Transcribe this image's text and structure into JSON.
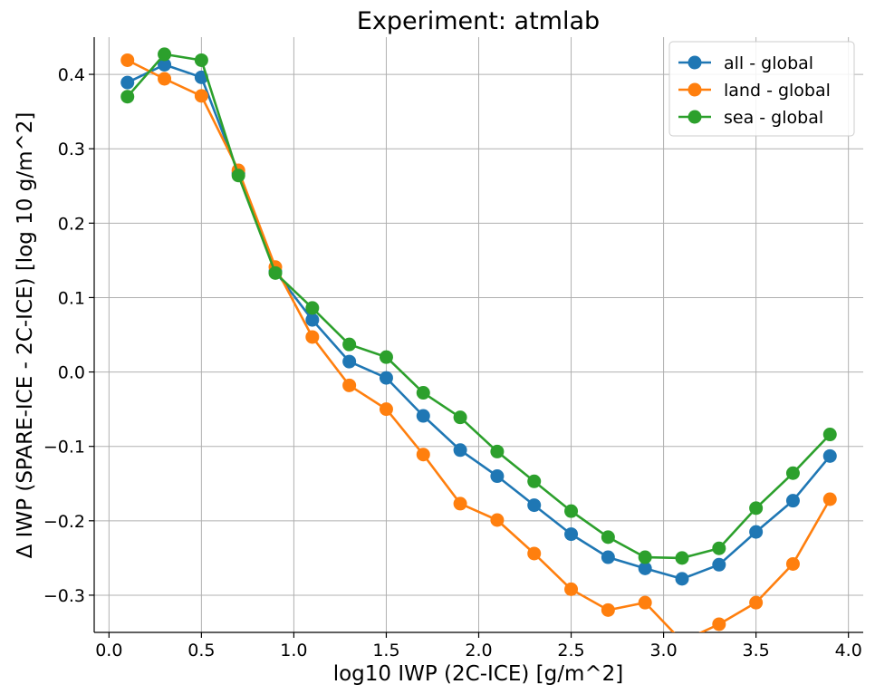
{
  "chart_data": {
    "type": "line",
    "title": "Experiment: atmlab",
    "xlabel": "log10 IWP (2C-ICE) [g/m^2]",
    "ylabel": "Δ IWP (SPARE-ICE - 2C-ICE) [log 10 g/m^2]",
    "xlim": [
      -0.08,
      4.08
    ],
    "ylim": [
      -0.35,
      0.45
    ],
    "xticks": [
      0.0,
      0.5,
      1.0,
      1.5,
      2.0,
      2.5,
      3.0,
      3.5,
      4.0
    ],
    "xtick_labels": [
      "0.0",
      "0.5",
      "1.0",
      "1.5",
      "2.0",
      "2.5",
      "3.0",
      "3.5",
      "4.0"
    ],
    "yticks": [
      -0.3,
      -0.2,
      -0.1,
      0.0,
      0.1,
      0.2,
      0.3,
      0.4
    ],
    "ytick_labels": [
      "−0.3",
      "−0.2",
      "−0.1",
      "0.0",
      "0.1",
      "0.2",
      "0.3",
      "0.4"
    ],
    "grid": true,
    "legend_position": "top-right",
    "x": [
      0.1,
      0.3,
      0.5,
      0.7,
      0.9,
      1.1,
      1.3,
      1.5,
      1.7,
      1.9,
      2.1,
      2.3,
      2.5,
      2.7,
      2.9,
      3.1,
      3.3,
      3.5,
      3.7,
      3.9
    ],
    "series": [
      {
        "name": "all - global",
        "color": "#1f77b4",
        "values": [
          0.389,
          0.413,
          0.396,
          0.267,
          0.135,
          0.07,
          0.014,
          -0.008,
          -0.059,
          -0.105,
          -0.14,
          -0.179,
          -0.218,
          -0.249,
          -0.264,
          -0.278,
          -0.259,
          -0.215,
          -0.173,
          -0.113
        ]
      },
      {
        "name": "land - global",
        "color": "#ff7f0e",
        "values": [
          0.419,
          0.394,
          0.371,
          0.271,
          0.141,
          0.047,
          -0.018,
          -0.05,
          -0.111,
          -0.177,
          -0.199,
          -0.244,
          -0.292,
          -0.32,
          -0.31,
          -0.362,
          -0.339,
          -0.31,
          -0.258,
          -0.171
        ]
      },
      {
        "name": "sea - global",
        "color": "#2ca02c",
        "values": [
          0.37,
          0.427,
          0.419,
          0.264,
          0.133,
          0.086,
          0.037,
          0.02,
          -0.028,
          -0.061,
          -0.107,
          -0.147,
          -0.187,
          -0.222,
          -0.249,
          -0.25,
          -0.237,
          -0.183,
          -0.136,
          -0.084
        ]
      }
    ]
  }
}
